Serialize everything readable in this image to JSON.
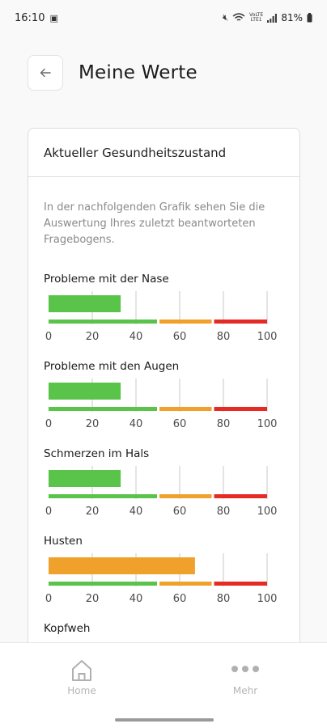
{
  "status_bar": {
    "time": "16:10",
    "battery": "81%",
    "network_top": "VoLTE",
    "network_bottom": "LTE1"
  },
  "header": {
    "title": "Meine Werte",
    "back_icon": "arrow-left-icon"
  },
  "card": {
    "title": "Aktueller Gesundheitszustand",
    "intro": "In der nachfolgenden Grafik sehen Sie die Auswertung Ihres zuletzt beantworteten Fragebogens."
  },
  "colors": {
    "green": "#5ac44a",
    "orange": "#f0a12b",
    "red": "#e52b26",
    "grid": "#c8c8c8"
  },
  "scale": {
    "ticks": [
      "0",
      "20",
      "40",
      "60",
      "80",
      "100"
    ],
    "min": 0,
    "max": 100,
    "zones": [
      {
        "from": 0,
        "to": 50,
        "color": "green"
      },
      {
        "from": 50,
        "to": 75,
        "color": "orange"
      },
      {
        "from": 75,
        "to": 100,
        "color": "red"
      }
    ]
  },
  "metrics": [
    {
      "title": "Probleme mit der Nase",
      "value": 33,
      "color": "green"
    },
    {
      "title": "Probleme mit den Augen",
      "value": 33,
      "color": "green"
    },
    {
      "title": "Schmerzen im Hals",
      "value": 33,
      "color": "green"
    },
    {
      "title": "Husten",
      "value": 67,
      "color": "orange"
    },
    {
      "title": "Kopfweh",
      "value": null,
      "color": null
    }
  ],
  "chart_data": {
    "type": "bar",
    "categories": [
      "Probleme mit der Nase",
      "Probleme mit den Augen",
      "Schmerzen im Hals",
      "Husten"
    ],
    "values": [
      33,
      33,
      33,
      67
    ],
    "xlim": [
      0,
      100
    ],
    "ticks": [
      0,
      20,
      40,
      60,
      80,
      100
    ]
  },
  "nav": {
    "items": [
      {
        "label": "Home",
        "icon": "home-icon"
      },
      {
        "label": "Mehr",
        "icon": "more-dots-icon"
      }
    ]
  }
}
